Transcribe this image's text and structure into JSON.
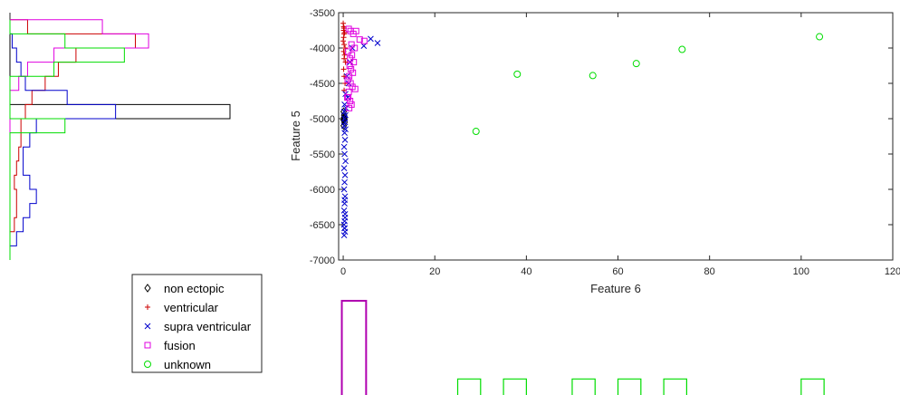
{
  "chart_data": {
    "type": "scatter",
    "xlabel": "Feature 6",
    "ylabel": "Feature 5",
    "xlim": [
      -1,
      120
    ],
    "ylim": [
      -7000,
      -3500
    ],
    "xticks": [
      0,
      20,
      40,
      60,
      80,
      100,
      120
    ],
    "yticks": [
      -3500,
      -4000,
      -4500,
      -5000,
      -5500,
      -6000,
      -6500,
      -7000
    ],
    "grid": false,
    "legend_position": "lower-left",
    "series": [
      {
        "name": "non ectopic",
        "marker": "diamond",
        "color": "#000000",
        "x": [
          0.1,
          0.2,
          0.15,
          0.3,
          0.1,
          0.25,
          0.2,
          0.1
        ],
        "y": [
          -4900,
          -4950,
          -5000,
          -5050,
          -5100,
          -5000,
          -4980,
          -5020
        ]
      },
      {
        "name": "ventricular",
        "marker": "plus",
        "color": "#cc0000",
        "x": [
          0,
          0.1,
          0.2,
          0.1,
          0.3,
          0.2,
          0.1,
          0,
          0.2,
          0.4,
          0.1,
          0.3,
          0.2,
          0.5,
          0.1,
          0.2,
          0.4,
          0.2
        ],
        "y": [
          -3650,
          -3700,
          -3720,
          -3750,
          -3780,
          -3800,
          -3850,
          -3900,
          -3950,
          -4000,
          -4050,
          -4100,
          -4150,
          -4200,
          -4300,
          -4400,
          -4500,
          -4600
        ]
      },
      {
        "name": "supra ventricular",
        "marker": "x",
        "color": "#0000cc",
        "x": [
          6,
          7.5,
          4.5,
          2,
          1.5,
          0.8,
          1.2,
          0.5,
          1,
          0.3,
          0.6,
          0.2,
          0.5,
          0.3,
          0.4,
          0.2,
          0.5,
          0.3,
          0.4,
          0.2,
          0.3,
          0.5,
          0.2,
          0.4,
          0.3,
          0.2,
          0.4,
          0.3,
          0.2,
          0.4,
          0.3,
          0.2,
          0.3,
          0.4,
          0.2,
          0.3,
          0.4,
          0.3
        ],
        "y": [
          -3870,
          -3930,
          -3970,
          -4000,
          -4200,
          -4400,
          -4500,
          -4650,
          -4700,
          -4800,
          -4850,
          -4900,
          -4950,
          -5000,
          -5050,
          -5100,
          -5150,
          -5200,
          -5300,
          -5400,
          -5500,
          -5600,
          -5700,
          -5800,
          -5900,
          -6000,
          -6100,
          -6200,
          -6300,
          -6400,
          -6450,
          -6500,
          -6550,
          -6600,
          -6650,
          -6550,
          -6350,
          -6150
        ]
      },
      {
        "name": "fusion",
        "marker": "square",
        "color": "#e000e0",
        "x": [
          1.2,
          1.6,
          2.2,
          2.8,
          3.6,
          4.6,
          1.8,
          2.5,
          1.1,
          1.9,
          1.5,
          2.3,
          1.4,
          1.7,
          2.1,
          1.3,
          1.0,
          1.6,
          2.6,
          1.2,
          0.9,
          1.5,
          1.8,
          1.3,
          1.1,
          2.0
        ],
        "y": [
          -3730,
          -3760,
          -3800,
          -3760,
          -3880,
          -3900,
          -3950,
          -4000,
          -4050,
          -4100,
          -4150,
          -4200,
          -4250,
          -4300,
          -4350,
          -4400,
          -4450,
          -4500,
          -4580,
          -4620,
          -4700,
          -4750,
          -4800,
          -4850,
          -4700,
          -4550
        ]
      },
      {
        "name": "unknown",
        "marker": "circle",
        "color": "#00dd00",
        "x": [
          29,
          38,
          54.5,
          64,
          74,
          104
        ],
        "y": [
          -5180,
          -4370,
          -4390,
          -4220,
          -4020,
          -3840
        ]
      }
    ],
    "side_histogram_feature5": {
      "orientation": "horizontal",
      "bin_edges": [
        -7000,
        -6800,
        -6600,
        -6400,
        -6200,
        -6000,
        -5800,
        -5600,
        -5400,
        -5200,
        -5000,
        -4800,
        -4600,
        -4400,
        -4200,
        -4000,
        -3800,
        -3600
      ],
      "series": [
        {
          "name": "non ectopic",
          "color": "#000000",
          "counts": [
            0,
            0,
            0,
            0,
            0,
            0,
            0,
            0,
            0,
            0,
            1.0,
            0,
            0,
            0,
            0,
            0,
            0
          ]
        },
        {
          "name": "ventricular",
          "color": "#cc0000",
          "counts": [
            0,
            0,
            0.02,
            0.03,
            0.03,
            0.02,
            0.03,
            0.04,
            0.05,
            0.05,
            0.07,
            0.1,
            0.16,
            0.22,
            0.3,
            0.57,
            0.08
          ]
        },
        {
          "name": "supra ventricular",
          "color": "#0000cc",
          "counts": [
            0,
            0.03,
            0.06,
            0.09,
            0.12,
            0.09,
            0.06,
            0.06,
            0.09,
            0.12,
            0.48,
            0.26,
            0.07,
            0.05,
            0.03,
            0.01,
            0
          ]
        },
        {
          "name": "fusion",
          "color": "#e000e0",
          "counts": [
            0,
            0,
            0,
            0,
            0,
            0,
            0,
            0,
            0,
            0,
            0,
            0,
            0.04,
            0.08,
            0.2,
            0.63,
            0.42
          ]
        },
        {
          "name": "unknown",
          "color": "#00dd00",
          "counts": [
            0,
            0,
            0,
            0,
            0,
            0,
            0,
            0,
            0,
            0.25,
            0,
            0,
            0,
            0.2,
            0.52,
            0.25,
            0
          ]
        }
      ]
    },
    "bottom_histogram_feature6": {
      "orientation": "vertical",
      "series": [
        {
          "name": "fusion",
          "color": "#b000b0",
          "bins": [
            [
              -0.3,
              5
            ]
          ],
          "counts": [
            1.0
          ]
        },
        {
          "name": "unknown",
          "color": "#00dd00",
          "bins": [
            [
              25,
              30
            ],
            [
              35,
              40
            ],
            [
              50,
              55
            ],
            [
              60,
              65
            ],
            [
              70,
              75
            ],
            [
              100,
              105
            ]
          ],
          "counts": [
            0.17,
            0.17,
            0.17,
            0.17,
            0.17,
            0.17
          ]
        }
      ]
    }
  }
}
